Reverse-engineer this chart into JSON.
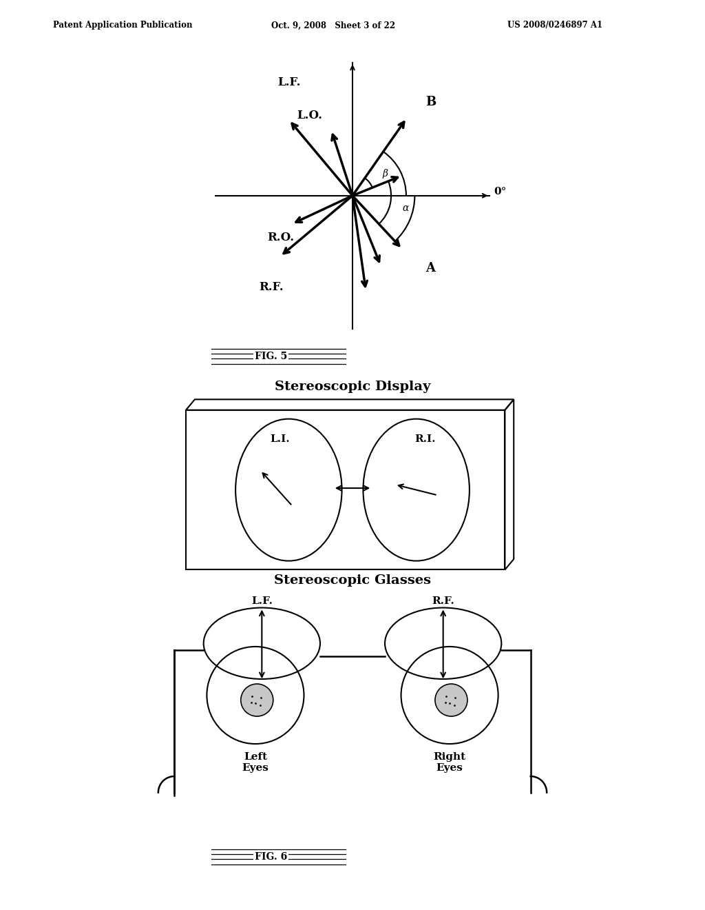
{
  "header_left": "Patent Application Publication",
  "header_center": "Oct. 9, 2008   Sheet 3 of 22",
  "header_right": "US 2008/0246897 A1",
  "display_title": "Stereoscopic Display",
  "glasses_title": "Stereoscopic Glasses",
  "LF_label": "L.F.",
  "RF_label": "R.F.",
  "LO_label": "L.O.",
  "RO_label": "R.O.",
  "LI_label": "L.I.",
  "RI_label": "R.I.",
  "zero_label": "0°",
  "B_label": "B",
  "A_label": "A",
  "alpha_label": "α",
  "beta_label": "β",
  "left_eyes": "Left\nEyes",
  "right_eyes": "Right\nEyes",
  "fig5_label": "FIG. 5",
  "fig6_label": "FIG. 6",
  "bg_color": "#ffffff",
  "fg_color": "#000000"
}
